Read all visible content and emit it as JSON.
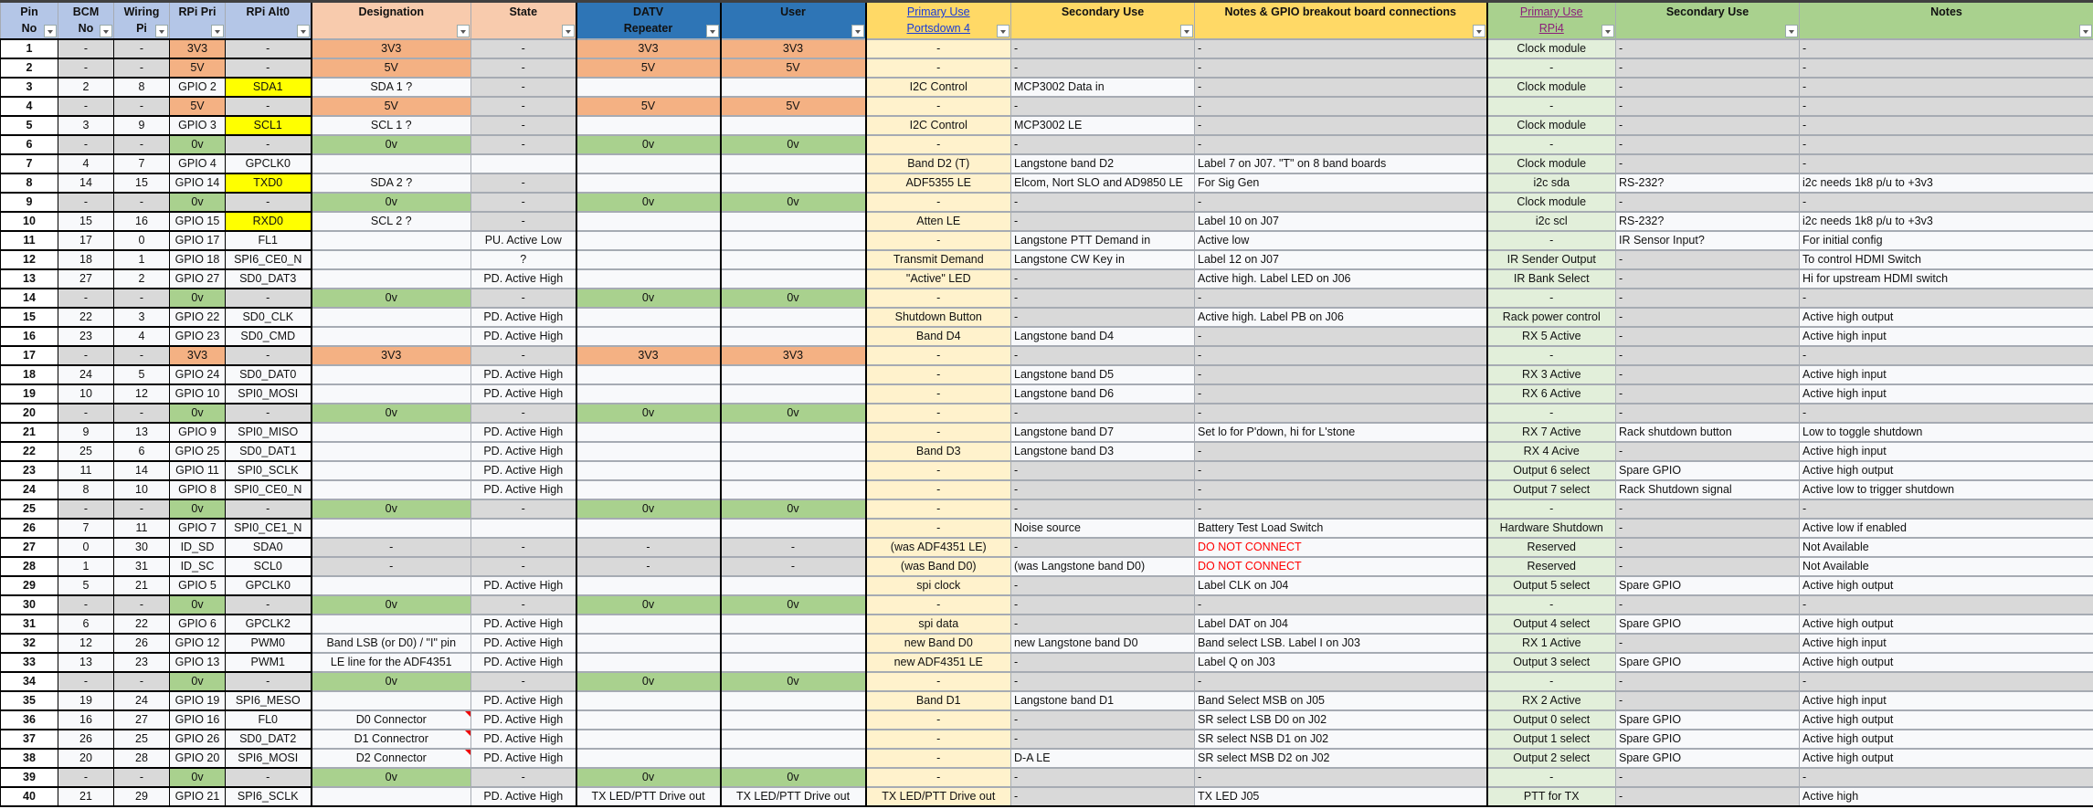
{
  "colors": {
    "power_3v3_5v": "#f4b183",
    "ground_0v": "#a9d18e",
    "alt_i2c_uart": "#ffff00",
    "na_grey": "#d9d9d9",
    "portsdown_primary": "#fff2cc",
    "rpi4_primary": "#e2efda",
    "warning_text": "#ff0000"
  },
  "headers": [
    {
      "lines": [
        "Pin",
        "No"
      ],
      "style": "h-blue"
    },
    {
      "lines": [
        "BCM",
        "No"
      ],
      "style": "h-blue"
    },
    {
      "lines": [
        "Wiring",
        "Pi"
      ],
      "style": "h-blue"
    },
    {
      "lines": [
        "RPi Pri"
      ],
      "style": "h-blue"
    },
    {
      "lines": [
        "RPi Alt0"
      ],
      "style": "h-blue"
    },
    {
      "lines": [
        "Designation"
      ],
      "style": "h-peach"
    },
    {
      "lines": [
        "State"
      ],
      "style": "h-peach"
    },
    {
      "lines": [
        "DATV",
        "Repeater"
      ],
      "style": "h-dblue"
    },
    {
      "lines": [
        "User"
      ],
      "style": "h-dblue"
    },
    {
      "lines": [
        "Primary Use",
        "Portsdown 4"
      ],
      "style": "h-yellow",
      "link": "lnk-blue"
    },
    {
      "lines": [
        "Secondary Use"
      ],
      "style": "h-yellow"
    },
    {
      "lines": [
        "Notes & GPIO breakout board connections"
      ],
      "style": "h-yellow"
    },
    {
      "lines": [
        "Primary Use",
        "RPi4"
      ],
      "style": "h-green",
      "link": "lnk-purple"
    },
    {
      "lines": [
        "Secondary Use"
      ],
      "style": "h-green"
    },
    {
      "lines": [
        "Notes"
      ],
      "style": "h-green"
    }
  ],
  "rows": [
    [
      "1",
      "-",
      "-",
      "3V3",
      "-",
      "3V3",
      "-",
      "3V3",
      "3V3",
      "-",
      "-",
      "-",
      "Clock module",
      "-",
      "-"
    ],
    [
      "2",
      "-",
      "-",
      "5V",
      "-",
      "5V",
      "-",
      "5V",
      "5V",
      "-",
      "-",
      "-",
      "-",
      "-",
      "-"
    ],
    [
      "3",
      "2",
      "8",
      "GPIO 2",
      "SDA1",
      "SDA 1 ?",
      "-",
      "",
      "",
      "I2C Control",
      "MCP3002 Data in",
      "-",
      "Clock module",
      "-",
      "-"
    ],
    [
      "4",
      "-",
      "-",
      "5V",
      "-",
      "5V",
      "-",
      "5V",
      "5V",
      "-",
      "-",
      "-",
      "-",
      "-",
      "-"
    ],
    [
      "5",
      "3",
      "9",
      "GPIO 3",
      "SCL1",
      "SCL 1 ?",
      "-",
      "",
      "",
      "I2C Control",
      "MCP3002 LE",
      "-",
      "Clock module",
      "-",
      "-"
    ],
    [
      "6",
      "-",
      "-",
      "0v",
      "-",
      "0v",
      "-",
      "0v",
      "0v",
      "-",
      "-",
      "-",
      "-",
      "-",
      "-"
    ],
    [
      "7",
      "4",
      "7",
      "GPIO 4",
      "GPCLK0",
      "",
      "",
      "",
      "",
      "Band D2 (T)",
      "Langstone band D2",
      "Label 7 on J07. \"T\" on 8 band boards",
      "Clock module",
      "-",
      "-"
    ],
    [
      "8",
      "14",
      "15",
      "GPIO 14",
      "TXD0",
      "SDA 2 ?",
      "-",
      "",
      "",
      "ADF5355 LE",
      "Elcom, Nort SLO and AD9850 LE",
      "For Sig Gen",
      "i2c sda",
      "RS-232?",
      "i2c needs 1k8 p/u to +3v3"
    ],
    [
      "9",
      "-",
      "-",
      "0v",
      "-",
      "0v",
      "-",
      "0v",
      "0v",
      "-",
      "-",
      "-",
      "Clock module",
      "-",
      "-"
    ],
    [
      "10",
      "15",
      "16",
      "GPIO 15",
      "RXD0",
      "SCL 2 ?",
      "-",
      "",
      "",
      "Atten LE",
      "-",
      "Label 10 on J07",
      "i2c scl",
      "RS-232?",
      "i2c needs 1k8 p/u to +3v3"
    ],
    [
      "11",
      "17",
      "0",
      "GPIO 17",
      "FL1",
      "",
      "PU.  Active Low",
      "",
      "",
      "-",
      "Langstone PTT Demand in",
      "Active low",
      "-",
      "IR Sensor Input?",
      "For initial config"
    ],
    [
      "12",
      "18",
      "1",
      "GPIO 18",
      "SPI6_CE0_N",
      "",
      "?",
      "",
      "",
      "Transmit Demand",
      "Langstone CW Key in",
      "Label 12 on J07",
      "IR Sender Output",
      "-",
      "To control HDMI Switch"
    ],
    [
      "13",
      "27",
      "2",
      "GPIO 27",
      "SD0_DAT3",
      "",
      "PD. Active High",
      "",
      "",
      "\"Active\" LED",
      "-",
      "Active high. Label LED on J06",
      "IR Bank Select",
      "-",
      "Hi for upstream HDMI switch"
    ],
    [
      "14",
      "-",
      "-",
      "0v",
      "-",
      "0v",
      "-",
      "0v",
      "0v",
      "-",
      "-",
      "-",
      "-",
      "-",
      "-"
    ],
    [
      "15",
      "22",
      "3",
      "GPIO 22",
      "SD0_CLK",
      "",
      "PD. Active High",
      "",
      "",
      "Shutdown Button",
      "-",
      "Active high. Label PB on J06",
      "Rack power control",
      "-",
      "Active high output"
    ],
    [
      "16",
      "23",
      "4",
      "GPIO 23",
      "SD0_CMD",
      "",
      "PD. Active High",
      "",
      "",
      "Band D4",
      "Langstone band D4",
      "-",
      "RX 5 Active",
      "-",
      "Active high input"
    ],
    [
      "17",
      "-",
      "-",
      "3V3",
      "-",
      "3V3",
      "-",
      "3V3",
      "3V3",
      "-",
      "-",
      "-",
      "-",
      "-",
      "-"
    ],
    [
      "18",
      "24",
      "5",
      "GPIO 24",
      "SD0_DAT0",
      "",
      "PD. Active High",
      "",
      "",
      "-",
      "Langstone band D5",
      "-",
      "RX 3 Active",
      "-",
      "Active high input"
    ],
    [
      "19",
      "10",
      "12",
      "GPIO 10",
      "SPI0_MOSI",
      "",
      "PD. Active High",
      "",
      "",
      "-",
      "Langstone band D6",
      "-",
      "RX 6 Active",
      "-",
      "Active high input"
    ],
    [
      "20",
      "-",
      "-",
      "0v",
      "-",
      "0v",
      "-",
      "0v",
      "0v",
      "-",
      "-",
      "-",
      "-",
      "-",
      "-"
    ],
    [
      "21",
      "9",
      "13",
      "GPIO 9",
      "SPI0_MISO",
      "",
      "PD. Active High",
      "",
      "",
      "-",
      "Langstone band D7",
      "Set lo for P'down, hi for L'stone",
      "RX 7 Active",
      "Rack shutdown button",
      "Low to toggle shutdown"
    ],
    [
      "22",
      "25",
      "6",
      "GPIO 25",
      "SD0_DAT1",
      "",
      "PD. Active High",
      "",
      "",
      "Band D3",
      "Langstone band D3",
      "-",
      "RX 4 Acive",
      "-",
      "Active high input"
    ],
    [
      "23",
      "11",
      "14",
      "GPIO 11",
      "SPI0_SCLK",
      "",
      "PD. Active High",
      "",
      "",
      "-",
      "-",
      "-",
      "Output 6 select",
      "Spare GPIO",
      "Active high output"
    ],
    [
      "24",
      "8",
      "10",
      "GPIO 8",
      "SPI0_CE0_N",
      "",
      "PD. Active High",
      "",
      "",
      "-",
      "-",
      "-",
      "Output 7 select",
      "Rack Shutdown signal",
      "Active low to trigger shutdown"
    ],
    [
      "25",
      "-",
      "-",
      "0v",
      "-",
      "0v",
      "-",
      "0v",
      "0v",
      "-",
      "-",
      "-",
      "-",
      "-",
      "-"
    ],
    [
      "26",
      "7",
      "11",
      "GPIO 7",
      "SPI0_CE1_N",
      "",
      "",
      "",
      "",
      "-",
      "Noise source",
      "Battery Test Load Switch",
      "Hardware Shutdown",
      "-",
      "Active low if enabled"
    ],
    [
      "27",
      "0",
      "30",
      "ID_SD",
      "SDA0",
      "-",
      "-",
      "-",
      "-",
      "(was ADF4351 LE)",
      "-",
      "DO NOT CONNECT",
      "Reserved",
      "-",
      "Not Available"
    ],
    [
      "28",
      "1",
      "31",
      "ID_SC",
      "SCL0",
      "-",
      "-",
      "-",
      "-",
      "(was Band D0)",
      "(was Langstone band D0)",
      "DO NOT CONNECT",
      "Reserved",
      "-",
      "Not Available"
    ],
    [
      "29",
      "5",
      "21",
      "GPIO 5",
      "GPCLK0",
      "",
      "PD. Active High",
      "",
      "",
      "spi clock",
      "-",
      "Label CLK on J04",
      "Output 5 select",
      "Spare GPIO",
      "Active high output"
    ],
    [
      "30",
      "-",
      "-",
      "0v",
      "-",
      "0v",
      "-",
      "0v",
      "0v",
      "-",
      "-",
      "-",
      "-",
      "-",
      "-"
    ],
    [
      "31",
      "6",
      "22",
      "GPIO 6",
      "GPCLK2",
      "",
      "PD. Active High",
      "",
      "",
      "spi data",
      "-",
      "Label DAT on J04",
      "Output 4 select",
      "Spare GPIO",
      "Active high output"
    ],
    [
      "32",
      "12",
      "26",
      "GPIO 12",
      "PWM0",
      "Band LSB (or D0) / \"I\" pin",
      "PD. Active High",
      "",
      "",
      "new Band D0",
      "new Langstone band D0",
      "Band select LSB. Label I on J03",
      "RX 1 Active",
      "-",
      "Active high input"
    ],
    [
      "33",
      "13",
      "23",
      "GPIO 13",
      "PWM1",
      "LE line for the ADF4351",
      "PD. Active High",
      "",
      "",
      "new ADF4351 LE",
      "-",
      "Label Q on J03",
      "Output 3 select",
      "Spare GPIO",
      "Active high output"
    ],
    [
      "34",
      "-",
      "-",
      "0v",
      "-",
      "0v",
      "-",
      "0v",
      "0v",
      "-",
      "-",
      "-",
      "-",
      "-",
      "-"
    ],
    [
      "35",
      "19",
      "24",
      "GPIO 19",
      "SPI6_MESO",
      "",
      "PD. Active High",
      "",
      "",
      "Band D1",
      "Langstone band D1",
      "Band Select MSB on J05",
      "RX 2 Active",
      "-",
      "Active high input"
    ],
    [
      "36",
      "16",
      "27",
      "GPIO 16",
      "FL0",
      "D0 Connector",
      "PD. Active High",
      "",
      "",
      "-",
      "-",
      "SR select LSB D0 on J02",
      "Output 0 select",
      "Spare GPIO",
      "Active high output"
    ],
    [
      "37",
      "26",
      "25",
      "GPIO 26",
      "SD0_DAT2",
      "D1 Connectror",
      "PD. Active High",
      "",
      "",
      "-",
      "-",
      "SR select NSB D1 on J02",
      "Output 1 select",
      "Spare GPIO",
      "Active high output"
    ],
    [
      "38",
      "20",
      "28",
      "GPIO 20",
      "SPI6_MOSI",
      "D2 Connector",
      "PD. Active High",
      "",
      "",
      "-",
      "D-A LE",
      "SR select MSB D2 on J02",
      "Output 2 select",
      "Spare GPIO",
      "Active high output"
    ],
    [
      "39",
      "-",
      "-",
      "0v",
      "-",
      "0v",
      "-",
      "0v",
      "0v",
      "-",
      "-",
      "-",
      "-",
      "-",
      "-"
    ],
    [
      "40",
      "21",
      "29",
      "GPIO 21",
      "SPI6_SCLK",
      "",
      "PD. Active High",
      "TX LED/PTT Drive out",
      "TX LED/PTT Drive out",
      "TX LED/PTT Drive out",
      "-",
      "TX LED J05",
      "PTT for TX",
      "-",
      "Active high"
    ]
  ]
}
